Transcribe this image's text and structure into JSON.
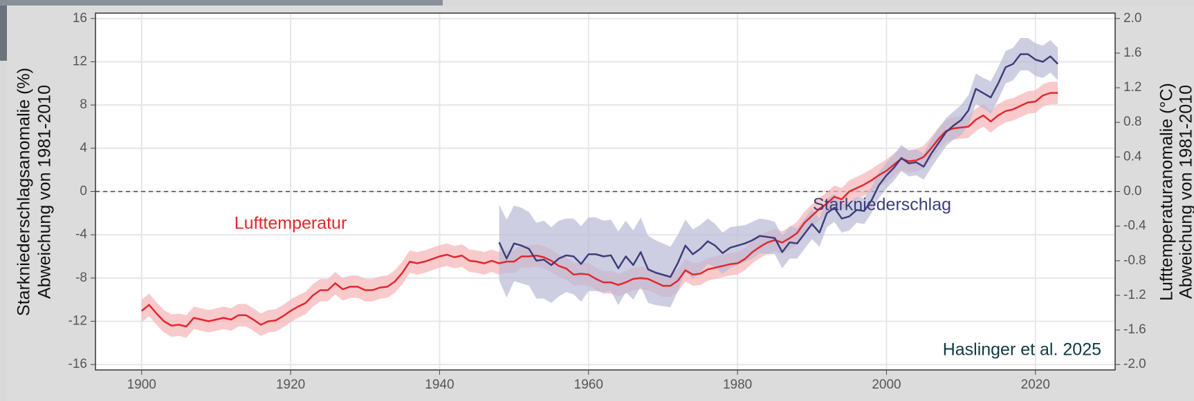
{
  "chart_data": {
    "type": "line",
    "attribution": "Haslinger et al. 2025",
    "ylabel": [
      "Starkniederschlagsanomalie (%)",
      "Abweichung von 1981-2010"
    ],
    "y2label": [
      "Lufttemperaturanomalie (°C)",
      "Abweichung von 1981-2010"
    ],
    "xlim": [
      1893.8,
      2030.7
    ],
    "xticks": [
      1900,
      1920,
      1940,
      1960,
      1980,
      2000,
      2020
    ],
    "ylim": [
      -16.5,
      16.5
    ],
    "yticks": [
      -16,
      -12,
      -8,
      -4,
      0,
      4,
      8,
      12,
      16
    ],
    "y2lim": [
      -2.0625,
      2.0625
    ],
    "y2ticks": [
      {
        "value": -2.0,
        "label": "-2.0"
      },
      -1.6,
      -1.2,
      -0.8,
      -0.4,
      {
        "value": 0.0,
        "label": "0.0"
      },
      0.4,
      0.8,
      1.2,
      1.6,
      {
        "value": 2.0,
        "label": "2.0"
      }
    ],
    "grid": true,
    "reference_line": 0,
    "x": [
      1900,
      1901,
      1902,
      1903,
      1904,
      1905,
      1906,
      1907,
      1908,
      1909,
      1910,
      1911,
      1912,
      1913,
      1914,
      1915,
      1916,
      1917,
      1918,
      1919,
      1920,
      1921,
      1922,
      1923,
      1924,
      1925,
      1926,
      1927,
      1928,
      1929,
      1930,
      1931,
      1932,
      1933,
      1934,
      1935,
      1936,
      1937,
      1938,
      1939,
      1940,
      1941,
      1942,
      1943,
      1944,
      1945,
      1946,
      1947,
      1948,
      1949,
      1950,
      1951,
      1952,
      1953,
      1954,
      1955,
      1956,
      1957,
      1958,
      1959,
      1960,
      1961,
      1962,
      1963,
      1964,
      1965,
      1966,
      1967,
      1968,
      1969,
      1970,
      1971,
      1972,
      1973,
      1974,
      1975,
      1976,
      1977,
      1978,
      1979,
      1980,
      1981,
      1982,
      1983,
      1984,
      1985,
      1986,
      1987,
      1988,
      1989,
      1990,
      1991,
      1992,
      1993,
      1994,
      1995,
      1996,
      1997,
      1998,
      1999,
      2000,
      2001,
      2002,
      2003,
      2004,
      2005,
      2006,
      2007,
      2008,
      2009,
      2010,
      2011,
      2012,
      2013,
      2014,
      2015,
      2016,
      2017,
      2018,
      2019,
      2020,
      2021,
      2022,
      2023
    ],
    "series": [
      {
        "name": "Lufttemperatur",
        "axis": "y2",
        "color": "#e3262b",
        "band_color": "#f5b3b5",
        "error": 0.13,
        "values": [
          -1.38,
          -1.31,
          -1.41,
          -1.5,
          -1.55,
          -1.54,
          -1.56,
          -1.46,
          -1.48,
          -1.5,
          -1.48,
          -1.46,
          -1.48,
          -1.43,
          -1.43,
          -1.48,
          -1.54,
          -1.5,
          -1.49,
          -1.44,
          -1.38,
          -1.33,
          -1.29,
          -1.2,
          -1.14,
          -1.14,
          -1.06,
          -1.13,
          -1.1,
          -1.1,
          -1.14,
          -1.14,
          -1.11,
          -1.1,
          -1.04,
          -0.94,
          -0.81,
          -0.83,
          -0.81,
          -0.78,
          -0.75,
          -0.73,
          -0.76,
          -0.74,
          -0.8,
          -0.81,
          -0.83,
          -0.8,
          -0.83,
          -0.81,
          -0.81,
          -0.75,
          -0.75,
          -0.74,
          -0.76,
          -0.8,
          -0.86,
          -0.89,
          -0.96,
          -0.95,
          -0.96,
          -1.01,
          -1.05,
          -1.05,
          -1.08,
          -1.05,
          -1.01,
          -1.0,
          -1.01,
          -1.05,
          -1.09,
          -1.09,
          -1.03,
          -0.91,
          -0.96,
          -0.95,
          -0.9,
          -0.88,
          -0.86,
          -0.84,
          -0.83,
          -0.78,
          -0.7,
          -0.64,
          -0.59,
          -0.56,
          -0.59,
          -0.54,
          -0.48,
          -0.36,
          -0.28,
          -0.2,
          -0.14,
          -0.06,
          -0.09,
          0,
          0.04,
          0.08,
          0.13,
          0.19,
          0.24,
          0.31,
          0.38,
          0.35,
          0.36,
          0.4,
          0.5,
          0.61,
          0.7,
          0.73,
          0.74,
          0.75,
          0.83,
          0.88,
          0.81,
          0.88,
          0.93,
          0.95,
          0.99,
          1.03,
          1.04,
          1.11,
          1.14,
          1.14
        ]
      },
      {
        "name": "Starkniederschlag",
        "color": "#3d3d7a",
        "band_color": "#b9b9d6",
        "values": [
          null,
          null,
          null,
          null,
          null,
          null,
          null,
          null,
          null,
          null,
          null,
          null,
          null,
          null,
          null,
          null,
          null,
          null,
          null,
          null,
          null,
          null,
          null,
          null,
          null,
          null,
          null,
          null,
          null,
          null,
          null,
          null,
          null,
          null,
          null,
          null,
          null,
          null,
          null,
          null,
          null,
          null,
          null,
          null,
          null,
          null,
          null,
          null,
          -4.7,
          -6.2,
          -4.8,
          -5.0,
          -5.3,
          -6.4,
          -6.3,
          -6.8,
          -6.2,
          -5.9,
          -6.0,
          -6.7,
          -5.8,
          -5.8,
          -6.0,
          -5.9,
          -7.1,
          -6.0,
          -6.8,
          -5.6,
          -7.2,
          -7.5,
          -7.7,
          -7.9,
          -6.6,
          -5.0,
          -5.8,
          -5.3,
          -4.6,
          -5.0,
          -5.7,
          -5.2,
          -5.0,
          -4.8,
          -4.5,
          -4.1,
          -4.2,
          -4.3,
          -5.6,
          -4.7,
          -4.8,
          -3.9,
          -3.0,
          -3.8,
          -2.0,
          -1.5,
          -2.5,
          -2.3,
          -1.7,
          -1.8,
          -0.8,
          0.6,
          1.5,
          2.2,
          3.1,
          2.6,
          2.7,
          2.3,
          3.5,
          4.5,
          5.5,
          6.1,
          6.6,
          7.5,
          9.5,
          9.1,
          8.7,
          10.0,
          11.5,
          11.8,
          12.7,
          12.7,
          12.2,
          12.0,
          12.5,
          11.8
        ],
        "errors": [
          null,
          null,
          null,
          null,
          null,
          null,
          null,
          null,
          null,
          null,
          null,
          null,
          null,
          null,
          null,
          null,
          null,
          null,
          null,
          null,
          null,
          null,
          null,
          null,
          null,
          null,
          null,
          null,
          null,
          null,
          null,
          null,
          null,
          null,
          null,
          null,
          null,
          null,
          null,
          null,
          null,
          null,
          null,
          null,
          null,
          null,
          null,
          null,
          3.5,
          3.6,
          3.5,
          3.5,
          3.4,
          3.5,
          3.6,
          3.5,
          3.5,
          3.4,
          3.5,
          3.5,
          3.4,
          3.4,
          3.3,
          3.3,
          3.4,
          3.3,
          3.2,
          3.2,
          3.1,
          3.0,
          2.9,
          2.8,
          2.6,
          2.4,
          2.3,
          2.2,
          2.1,
          2.0,
          1.9,
          1.9,
          1.8,
          1.7,
          1.7,
          1.6,
          1.6,
          1.5,
          1.5,
          1.5,
          1.4,
          1.4,
          1.4,
          1.3,
          1.3,
          1.3,
          1.3,
          1.3,
          1.2,
          1.2,
          1.2,
          1.2,
          1.2,
          1.2,
          1.2,
          1.2,
          1.2,
          1.2,
          1.3,
          1.3,
          1.3,
          1.3,
          1.4,
          1.4,
          1.4,
          1.4,
          1.5,
          1.5,
          1.5,
          1.5,
          1.5,
          1.5,
          1.5,
          1.5,
          1.5,
          1.5
        ]
      }
    ]
  }
}
